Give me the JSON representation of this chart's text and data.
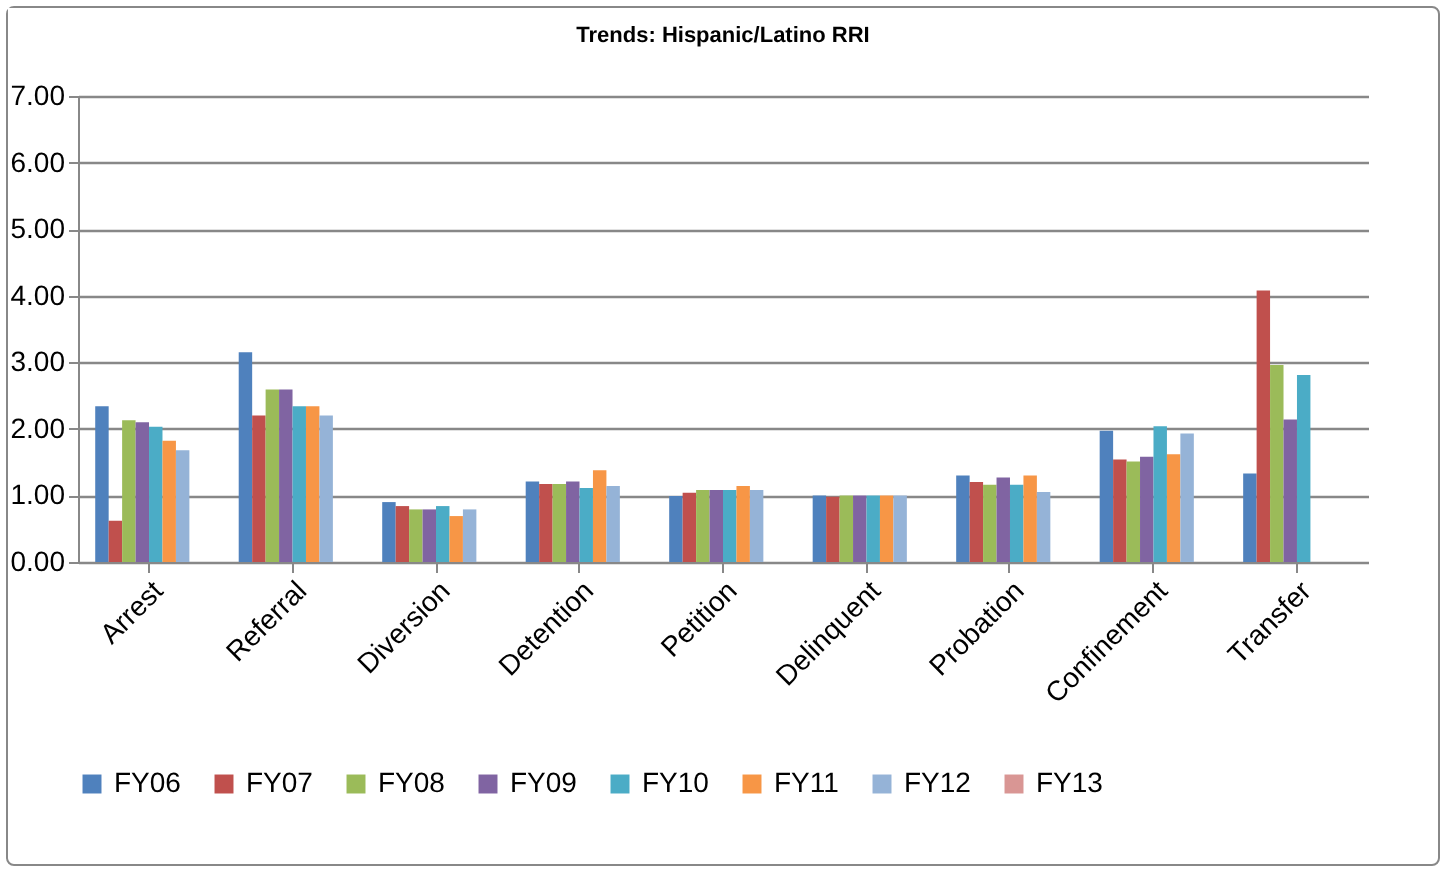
{
  "chart_data": {
    "type": "bar",
    "title": "Trends: Hispanic/Latino  RRI",
    "categories": [
      "Arrest",
      "Referral",
      "Diversion",
      "Detention",
      "Petition",
      "Delinquent",
      "Probation",
      "Confinement",
      "Transfer"
    ],
    "series": [
      {
        "name": "FY06",
        "color": "#4f81bd",
        "values": [
          2.34,
          3.15,
          0.9,
          1.21,
          0.99,
          1.0,
          1.3,
          1.97,
          1.33
        ]
      },
      {
        "name": "FY07",
        "color": "#c0504d",
        "values": [
          0.62,
          2.2,
          0.84,
          1.17,
          1.04,
          0.98,
          1.2,
          1.54,
          4.08
        ]
      },
      {
        "name": "FY08",
        "color": "#9bbb59",
        "values": [
          2.13,
          2.59,
          0.79,
          1.17,
          1.08,
          1.0,
          1.16,
          1.51,
          2.96
        ]
      },
      {
        "name": "FY09",
        "color": "#8064a2",
        "values": [
          2.1,
          2.59,
          0.79,
          1.21,
          1.08,
          1.0,
          1.27,
          1.58,
          2.14
        ]
      },
      {
        "name": "FY10",
        "color": "#4bacc6",
        "values": [
          2.03,
          2.34,
          0.84,
          1.11,
          1.08,
          1.0,
          1.16,
          2.04,
          2.81
        ]
      },
      {
        "name": "FY11",
        "color": "#f79646",
        "values": [
          1.82,
          2.34,
          0.69,
          1.38,
          1.14,
          1.0,
          1.3,
          1.62,
          null
        ]
      },
      {
        "name": "FY12",
        "color": "#95b3d7",
        "values": [
          1.68,
          2.2,
          0.79,
          1.14,
          1.08,
          1.0,
          1.05,
          1.93,
          null
        ]
      },
      {
        "name": "FY13",
        "color": "#d99694",
        "values": [
          null,
          null,
          null,
          null,
          null,
          null,
          null,
          null,
          null
        ]
      }
    ],
    "ylim": [
      0,
      7
    ],
    "yticks": [
      {
        "value": 0,
        "label": "0.00"
      },
      {
        "value": 1,
        "label": "1.00"
      },
      {
        "value": 2,
        "label": "2.00"
      },
      {
        "value": 3,
        "label": "3.00"
      },
      {
        "value": 4,
        "label": "4.00"
      },
      {
        "value": 5,
        "label": "5.00"
      },
      {
        "value": 6,
        "label": "6.00"
      },
      {
        "value": 7,
        "label": "7.00"
      }
    ],
    "grid": "y",
    "legend": "bottom"
  }
}
